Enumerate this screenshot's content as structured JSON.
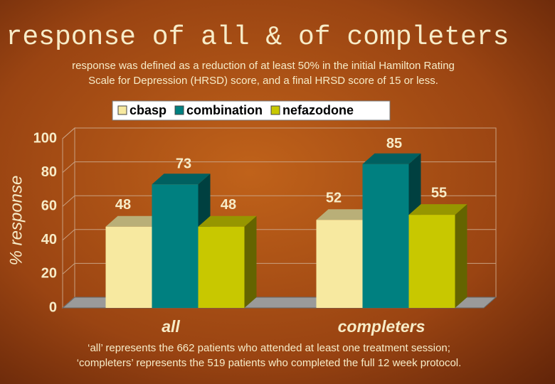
{
  "chart_data": {
    "type": "bar3d",
    "title": "response of all & of completers",
    "subtitle": [
      "response was defined as a reduction of at least 50% in the initial Hamilton Rating",
      "Scale for Depression (HRSD) score, and a final HRSD score of 15 or less."
    ],
    "y_label": "% response",
    "categories": [
      "all",
      "completers"
    ],
    "series": [
      {
        "name": "cbasp",
        "color": "#f7e9a0",
        "values": [
          48,
          52
        ]
      },
      {
        "name": "combination",
        "color": "#008080",
        "values": [
          73,
          85
        ]
      },
      {
        "name": "nefazodone",
        "color": "#c8c800",
        "values": [
          48,
          55
        ]
      }
    ],
    "ylim": [
      0,
      100
    ],
    "yticks": [
      0,
      20,
      40,
      60,
      80,
      100
    ],
    "grid": true,
    "legend": "top",
    "footnote": [
      "‘all’ represents the 662 patients who attended at least one treatment session;",
      "‘completers’ represents the 519 patients who completed the full 12 week protocol."
    ]
  }
}
